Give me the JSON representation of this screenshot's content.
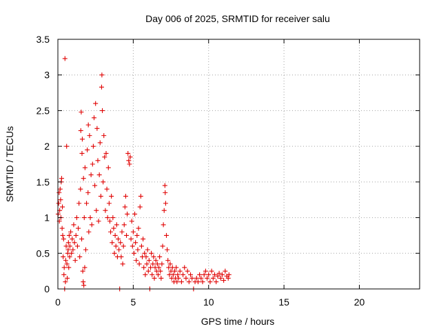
{
  "chart_data": {
    "type": "scatter",
    "title": "Day 006 of 2025, SRMTID for receiver salu",
    "xlabel": "GPS time / hours",
    "ylabel": "SRMTID / TECUs",
    "xlim": [
      0,
      24
    ],
    "ylim": [
      0,
      3.5
    ],
    "x_ticks": [
      0,
      5,
      10,
      15,
      20
    ],
    "x_tick_labels": [
      "0",
      "5",
      "10",
      "15",
      "20"
    ],
    "y_ticks": [
      0,
      0.5,
      1,
      1.5,
      2,
      2.5,
      3,
      3.5
    ],
    "y_tick_labels": [
      "0",
      "0.5",
      "1",
      "1.5",
      "2",
      "2.5",
      "3",
      "3.5"
    ],
    "grid": true,
    "marker": "+",
    "color": "#e00000",
    "series": [
      {
        "name": "SRMTID",
        "points": [
          [
            0.02,
            1.05
          ],
          [
            0.05,
            1.2
          ],
          [
            0.08,
            1.35
          ],
          [
            0.1,
            0.95
          ],
          [
            0.12,
            1.1
          ],
          [
            0.15,
            1.4
          ],
          [
            0.18,
            1.25
          ],
          [
            0.2,
            1.0
          ],
          [
            0.22,
            1.5
          ],
          [
            0.25,
            1.55
          ],
          [
            0.28,
            0.85
          ],
          [
            0.3,
            1.15
          ],
          [
            0.32,
            0.75
          ],
          [
            0.35,
            0.45
          ],
          [
            0.38,
            0.7
          ],
          [
            0.4,
            0.2
          ],
          [
            0.42,
            0.3
          ],
          [
            0.45,
            0.0
          ],
          [
            0.47,
            3.23
          ],
          [
            0.5,
            0.1
          ],
          [
            0.52,
            0.4
          ],
          [
            0.55,
            0.6
          ],
          [
            0.58,
            2.0
          ],
          [
            0.6,
            0.35
          ],
          [
            0.62,
            0.15
          ],
          [
            0.65,
            0.5
          ],
          [
            0.68,
            0.55
          ],
          [
            0.7,
            0.65
          ],
          [
            0.72,
            0.3
          ],
          [
            0.75,
            0.75
          ],
          [
            0.78,
            0.45
          ],
          [
            0.8,
            0.6
          ],
          [
            0.85,
            0.8
          ],
          [
            0.9,
            0.5
          ],
          [
            0.95,
            0.7
          ],
          [
            1.0,
            0.55
          ],
          [
            1.05,
            0.9
          ],
          [
            1.1,
            0.65
          ],
          [
            1.15,
            0.4
          ],
          [
            1.2,
            0.75
          ],
          [
            1.25,
            1.0
          ],
          [
            1.3,
            0.6
          ],
          [
            1.35,
            0.85
          ],
          [
            1.4,
            1.2
          ],
          [
            1.45,
            0.45
          ],
          [
            1.5,
            1.4
          ],
          [
            1.52,
            2.22
          ],
          [
            1.55,
            2.48
          ],
          [
            1.58,
            0.7
          ],
          [
            1.6,
            1.9
          ],
          [
            1.62,
            2.1
          ],
          [
            1.65,
            0.25
          ],
          [
            1.68,
            0.1
          ],
          [
            1.7,
            1.55
          ],
          [
            1.72,
            0.05
          ],
          [
            1.75,
            1.0
          ],
          [
            1.78,
            0.3
          ],
          [
            1.8,
            1.7
          ],
          [
            1.85,
            0.55
          ],
          [
            1.9,
            1.2
          ],
          [
            1.95,
            1.95
          ],
          [
            2.0,
            1.35
          ],
          [
            2.02,
            2.3
          ],
          [
            2.05,
            0.8
          ],
          [
            2.1,
            2.15
          ],
          [
            2.15,
            1.0
          ],
          [
            2.2,
            1.6
          ],
          [
            2.25,
            0.9
          ],
          [
            2.3,
            1.75
          ],
          [
            2.35,
            2.0
          ],
          [
            2.4,
            2.4
          ],
          [
            2.45,
            1.45
          ],
          [
            2.5,
            2.6
          ],
          [
            2.55,
            1.1
          ],
          [
            2.6,
            2.25
          ],
          [
            2.65,
            1.8
          ],
          [
            2.7,
            0.95
          ],
          [
            2.75,
            1.6
          ],
          [
            2.8,
            2.05
          ],
          [
            2.85,
            1.3
          ],
          [
            2.9,
            2.83
          ],
          [
            2.92,
            3.0
          ],
          [
            2.95,
            2.5
          ],
          [
            3.0,
            1.5
          ],
          [
            3.05,
            2.15
          ],
          [
            3.1,
            1.85
          ],
          [
            3.15,
            1.1
          ],
          [
            3.2,
            1.9
          ],
          [
            3.25,
            1.4
          ],
          [
            3.3,
            1.0
          ],
          [
            3.35,
            1.7
          ],
          [
            3.4,
            1.2
          ],
          [
            3.45,
            0.95
          ],
          [
            3.5,
            0.8
          ],
          [
            3.55,
            1.3
          ],
          [
            3.6,
            0.65
          ],
          [
            3.65,
            1.0
          ],
          [
            3.7,
            0.85
          ],
          [
            3.75,
            0.5
          ],
          [
            3.8,
            0.75
          ],
          [
            3.85,
            0.6
          ],
          [
            3.9,
            0.9
          ],
          [
            3.95,
            0.45
          ],
          [
            4.0,
            0.7
          ],
          [
            4.05,
            0.55
          ],
          [
            4.1,
            0.0
          ],
          [
            4.15,
            0.65
          ],
          [
            4.2,
            0.45
          ],
          [
            4.25,
            0.8
          ],
          [
            4.3,
            0.35
          ],
          [
            4.35,
            0.6
          ],
          [
            4.4,
            0.9
          ],
          [
            4.45,
            1.15
          ],
          [
            4.5,
            1.3
          ],
          [
            4.55,
            0.75
          ],
          [
            4.6,
            1.05
          ],
          [
            4.65,
            1.9
          ],
          [
            4.7,
            1.8
          ],
          [
            4.75,
            1.75
          ],
          [
            4.8,
            1.85
          ],
          [
            4.85,
            0.7
          ],
          [
            4.9,
            0.95
          ],
          [
            4.95,
            0.6
          ],
          [
            5.0,
            0.8
          ],
          [
            5.05,
            0.5
          ],
          [
            5.1,
            1.05
          ],
          [
            5.15,
            0.65
          ],
          [
            5.2,
            0.4
          ],
          [
            5.25,
            0.75
          ],
          [
            5.3,
            0.55
          ],
          [
            5.35,
            0.85
          ],
          [
            5.4,
            0.35
          ],
          [
            5.45,
            1.15
          ],
          [
            5.5,
            1.3
          ],
          [
            5.55,
            0.6
          ],
          [
            5.6,
            0.45
          ],
          [
            5.65,
            0.7
          ],
          [
            5.7,
            0.3
          ],
          [
            5.75,
            0.5
          ],
          [
            5.8,
            0.2
          ],
          [
            5.85,
            0.45
          ],
          [
            5.9,
            0.35
          ],
          [
            5.95,
            0.55
          ],
          [
            6.0,
            0.25
          ],
          [
            6.05,
            0.4
          ],
          [
            6.1,
            0.0
          ],
          [
            6.15,
            0.3
          ],
          [
            6.2,
            0.5
          ],
          [
            6.25,
            0.2
          ],
          [
            6.3,
            0.35
          ],
          [
            6.35,
            0.45
          ],
          [
            6.4,
            0.15
          ],
          [
            6.45,
            0.3
          ],
          [
            6.5,
            0.4
          ],
          [
            6.55,
            0.25
          ],
          [
            6.6,
            0.35
          ],
          [
            6.65,
            0.2
          ],
          [
            6.7,
            0.3
          ],
          [
            6.75,
            0.45
          ],
          [
            6.8,
            0.25
          ],
          [
            6.85,
            0.15
          ],
          [
            6.9,
            0.35
          ],
          [
            6.95,
            0.6
          ],
          [
            7.0,
            0.9
          ],
          [
            7.05,
            1.1
          ],
          [
            7.1,
            1.45
          ],
          [
            7.12,
            1.35
          ],
          [
            7.15,
            1.2
          ],
          [
            7.2,
            0.75
          ],
          [
            7.25,
            0.55
          ],
          [
            7.3,
            0.4
          ],
          [
            7.35,
            0.3
          ],
          [
            7.4,
            0.2
          ],
          [
            7.45,
            0.35
          ],
          [
            7.5,
            0.25
          ],
          [
            7.55,
            0.15
          ],
          [
            7.6,
            0.3
          ],
          [
            7.65,
            0.2
          ],
          [
            7.7,
            0.1
          ],
          [
            7.75,
            0.25
          ],
          [
            7.8,
            0.15
          ],
          [
            7.85,
            0.3
          ],
          [
            7.9,
            0.1
          ],
          [
            7.95,
            0.2
          ],
          [
            8.0,
            0.15
          ],
          [
            8.1,
            0.25
          ],
          [
            8.2,
            0.1
          ],
          [
            8.3,
            0.2
          ],
          [
            8.4,
            0.3
          ],
          [
            8.5,
            0.15
          ],
          [
            8.6,
            0.25
          ],
          [
            8.7,
            0.1
          ],
          [
            8.8,
            0.2
          ],
          [
            8.9,
            0.15
          ],
          [
            9.0,
            0.0
          ],
          [
            9.1,
            0.1
          ],
          [
            9.2,
            0.15
          ],
          [
            9.3,
            0.1
          ],
          [
            9.4,
            0.2
          ],
          [
            9.5,
            0.15
          ],
          [
            9.6,
            0.1
          ],
          [
            9.7,
            0.2
          ],
          [
            9.8,
            0.25
          ],
          [
            9.9,
            0.15
          ],
          [
            10.0,
            0.2
          ],
          [
            10.1,
            0.1
          ],
          [
            10.2,
            0.25
          ],
          [
            10.3,
            0.15
          ],
          [
            10.4,
            0.2
          ],
          [
            10.5,
            0.1
          ],
          [
            10.6,
            0.18
          ],
          [
            10.7,
            0.22
          ],
          [
            10.8,
            0.15
          ],
          [
            10.9,
            0.2
          ],
          [
            11.0,
            0.12
          ],
          [
            11.1,
            0.25
          ],
          [
            11.2,
            0.18
          ],
          [
            11.3,
            0.15
          ],
          [
            11.35,
            0.2
          ]
        ]
      }
    ]
  }
}
